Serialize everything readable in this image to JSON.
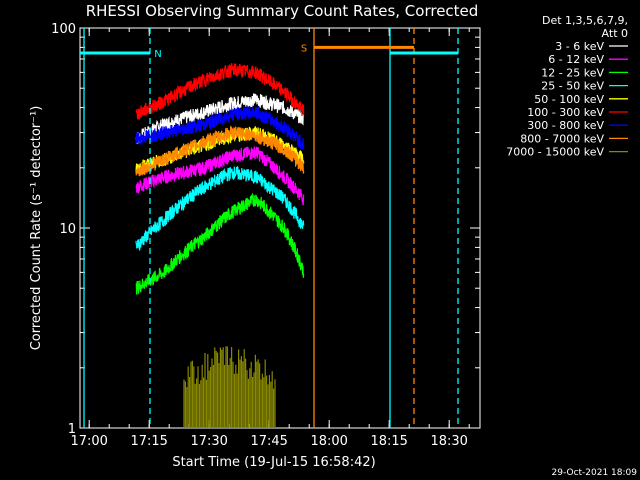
{
  "chart_data": {
    "type": "line",
    "title": "RHESSI Observing Summary Count Rates, Corrected",
    "xlabel": "Start Time (19-Jul-15 16:58:42)",
    "ylabel": "Corrected Count Rate (s⁻¹ detector⁻¹)",
    "yscale": "log",
    "ylim": [
      1,
      100
    ],
    "xlim_minutes": [
      -1,
      99
    ],
    "x_tick_labels": [
      "17:00",
      "17:15",
      "17:30",
      "17:45",
      "18:00",
      "18:15",
      "18:30"
    ],
    "y_tick_labels": [
      "1",
      "10",
      "100"
    ],
    "legend_header": [
      "Det 1,3,5,6,7,9,",
      "Att 0"
    ],
    "legend_placement": "right",
    "series": [
      {
        "name": "3 - 6 keV",
        "color": "#ffffff",
        "x": [
          13,
          20,
          30,
          37,
          43,
          50,
          55
        ],
        "y": [
          28,
          33,
          38,
          42,
          44,
          40,
          35
        ]
      },
      {
        "name": "6 - 12 keV",
        "color": "#ff00ff",
        "x": [
          13,
          20,
          30,
          37,
          43,
          50,
          55
        ],
        "y": [
          16,
          18,
          20,
          23,
          24,
          18,
          14
        ]
      },
      {
        "name": "12 - 25 keV",
        "color": "#00ff00",
        "x": [
          13,
          20,
          30,
          37,
          43,
          50,
          55
        ],
        "y": [
          5,
          6,
          9,
          12,
          14,
          10,
          6
        ]
      },
      {
        "name": "25 - 50 keV",
        "color": "#00ffff",
        "x": [
          13,
          20,
          30,
          37,
          43,
          50,
          55
        ],
        "y": [
          8,
          11,
          16,
          19,
          18,
          14,
          10
        ]
      },
      {
        "name": "50 - 100 keV",
        "color": "#ffff00",
        "x": [
          13,
          20,
          30,
          37,
          43,
          50,
          55
        ],
        "y": [
          20,
          22,
          26,
          29,
          30,
          26,
          22
        ]
      },
      {
        "name": "100 - 300 keV",
        "color": "#ff0000",
        "x": [
          13,
          20,
          30,
          37,
          43,
          50,
          55
        ],
        "y": [
          37,
          43,
          55,
          62,
          60,
          48,
          38
        ]
      },
      {
        "name": "300 - 800 keV",
        "color": "#0000ff",
        "x": [
          13,
          20,
          30,
          37,
          43,
          50,
          55
        ],
        "y": [
          28,
          30,
          33,
          37,
          38,
          32,
          26
        ]
      },
      {
        "name": "800 - 7000 keV",
        "color": "#ff8800",
        "x": [
          13,
          20,
          30,
          37,
          43,
          50,
          55
        ],
        "y": [
          19,
          22,
          27,
          30,
          29,
          25,
          20
        ]
      },
      {
        "name": "7000 - 15000 keV",
        "color": "#888800",
        "x": [
          25,
          30,
          35,
          40,
          45,
          48
        ],
        "y": [
          1.5,
          1.7,
          1.9,
          1.8,
          1.6,
          1.5
        ]
      }
    ],
    "annotations": [
      {
        "label": "N",
        "color": "#00ffff",
        "x_start": -1,
        "x_end": 16.5,
        "y": 75
      },
      {
        "label": "S",
        "color": "#ff8800",
        "x_start": 57.5,
        "x_end": 82.5,
        "y": 80
      },
      {
        "label": "",
        "color": "#00ffff",
        "x_start": 76.5,
        "x_end": 93.5,
        "y": 75
      }
    ],
    "vertical_markers": [
      {
        "x": 0,
        "color": "#00ffff",
        "style": "solid"
      },
      {
        "x": 16.5,
        "color": "#00ffff",
        "style": "dashed"
      },
      {
        "x": 57.5,
        "color": "#ff8800",
        "style": "solid"
      },
      {
        "x": 76.5,
        "color": "#00ffff",
        "style": "solid"
      },
      {
        "x": 82.5,
        "color": "#ff8800",
        "style": "dashed"
      },
      {
        "x": 93.5,
        "color": "#00ffff",
        "style": "dashed"
      }
    ]
  },
  "footer_date": "29-Oct-2021 18:09"
}
